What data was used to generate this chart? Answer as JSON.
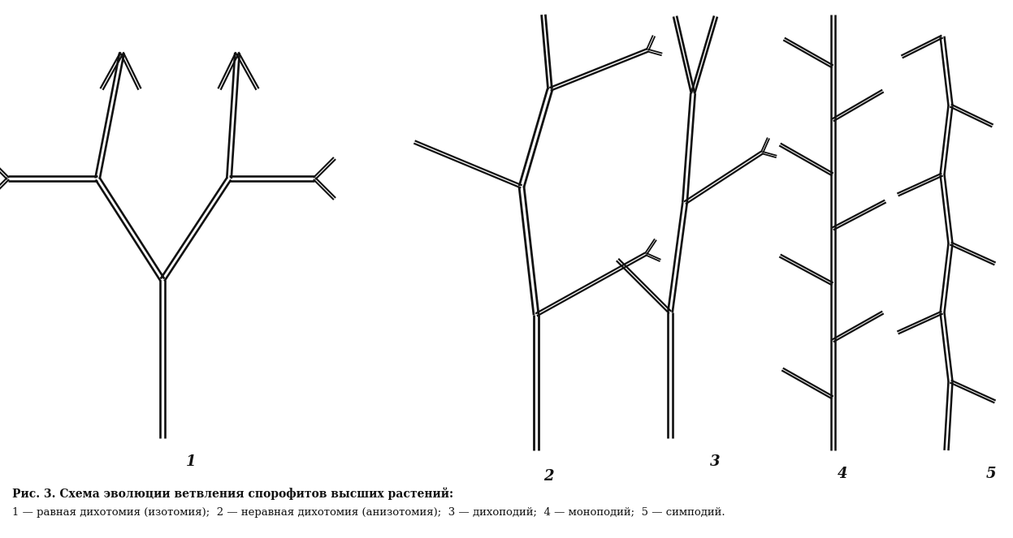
{
  "background": "#ffffff",
  "line_color": "#111111",
  "caption1": "Рис. 3. Схема эволюции ветвления спорофитов высших растений:",
  "caption2": "1 — равная дихотомия (изотомия);  2 — неравная дихотомия (анизотомия);  3 — дихоподий;  4 — моноподий;  5 — симподий."
}
